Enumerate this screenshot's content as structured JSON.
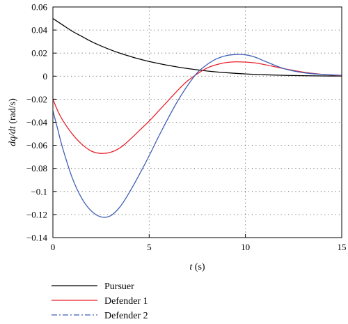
{
  "chart_data": {
    "type": "line",
    "xlabel": "t (s)",
    "ylabel": "dq/dt (rad/s)",
    "xlim": [
      0,
      15
    ],
    "ylim": [
      -0.14,
      0.06
    ],
    "xticks": [
      0,
      5,
      10,
      15
    ],
    "yticks": [
      0.06,
      0.04,
      0.02,
      0,
      -0.02,
      -0.04,
      -0.06,
      -0.08,
      -0.1,
      -0.12,
      -0.14
    ],
    "ytick_labels": [
      "0.06",
      "0.04",
      "0.02",
      "0",
      "−0.02",
      "−0.04",
      "−0.06",
      "−0.08",
      "−0.1",
      "−0.12",
      "−0.14"
    ],
    "grid": true,
    "legend_position": "bottom-left, below plot",
    "series": [
      {
        "name": "Pursuer",
        "color": "#000000",
        "style": "solid",
        "x": [
          0,
          0.5,
          1,
          1.5,
          2,
          2.5,
          3,
          3.5,
          4,
          4.5,
          5,
          6,
          7,
          8,
          9,
          10,
          11,
          12,
          13,
          14,
          15
        ],
        "y": [
          0.05,
          0.0445,
          0.039,
          0.0345,
          0.03,
          0.0262,
          0.0228,
          0.0198,
          0.0172,
          0.0148,
          0.0127,
          0.0093,
          0.0066,
          0.0045,
          0.003,
          0.0019,
          0.0012,
          0.0007,
          0.0004,
          0.0002,
          0.0001
        ]
      },
      {
        "name": "Defender 1",
        "color": "#e8202a",
        "style": "solid",
        "x": [
          0,
          0.25,
          0.5,
          1,
          1.5,
          2,
          2.5,
          3,
          3.5,
          4,
          4.5,
          5,
          5.5,
          6,
          6.5,
          7,
          7.5,
          8,
          8.5,
          9,
          9.5,
          10,
          10.5,
          11,
          12,
          13,
          14,
          15
        ],
        "y": [
          -0.02,
          -0.03,
          -0.038,
          -0.05,
          -0.059,
          -0.065,
          -0.067,
          -0.066,
          -0.062,
          -0.055,
          -0.047,
          -0.039,
          -0.03,
          -0.021,
          -0.012,
          -0.004,
          0.002,
          0.007,
          0.01,
          0.0118,
          0.0124,
          0.0122,
          0.0115,
          0.01,
          0.0065,
          0.0035,
          0.0015,
          0.0005
        ]
      },
      {
        "name": "Defender 2",
        "color": "#3f5fb5",
        "style": "dashdot",
        "x": [
          0,
          0.25,
          0.5,
          1,
          1.5,
          2,
          2.5,
          3,
          3.5,
          4,
          4.5,
          5,
          5.5,
          6,
          6.5,
          7,
          7.5,
          8,
          8.5,
          9,
          9.5,
          10,
          10.5,
          11,
          12,
          13,
          14,
          15
        ],
        "y": [
          -0.03,
          -0.046,
          -0.062,
          -0.088,
          -0.106,
          -0.117,
          -0.122,
          -0.121,
          -0.113,
          -0.1,
          -0.085,
          -0.069,
          -0.052,
          -0.036,
          -0.021,
          -0.008,
          0.003,
          0.01,
          0.015,
          0.0178,
          0.0188,
          0.0185,
          0.0165,
          0.013,
          0.0065,
          0.003,
          0.0015,
          0.0008
        ]
      }
    ]
  }
}
